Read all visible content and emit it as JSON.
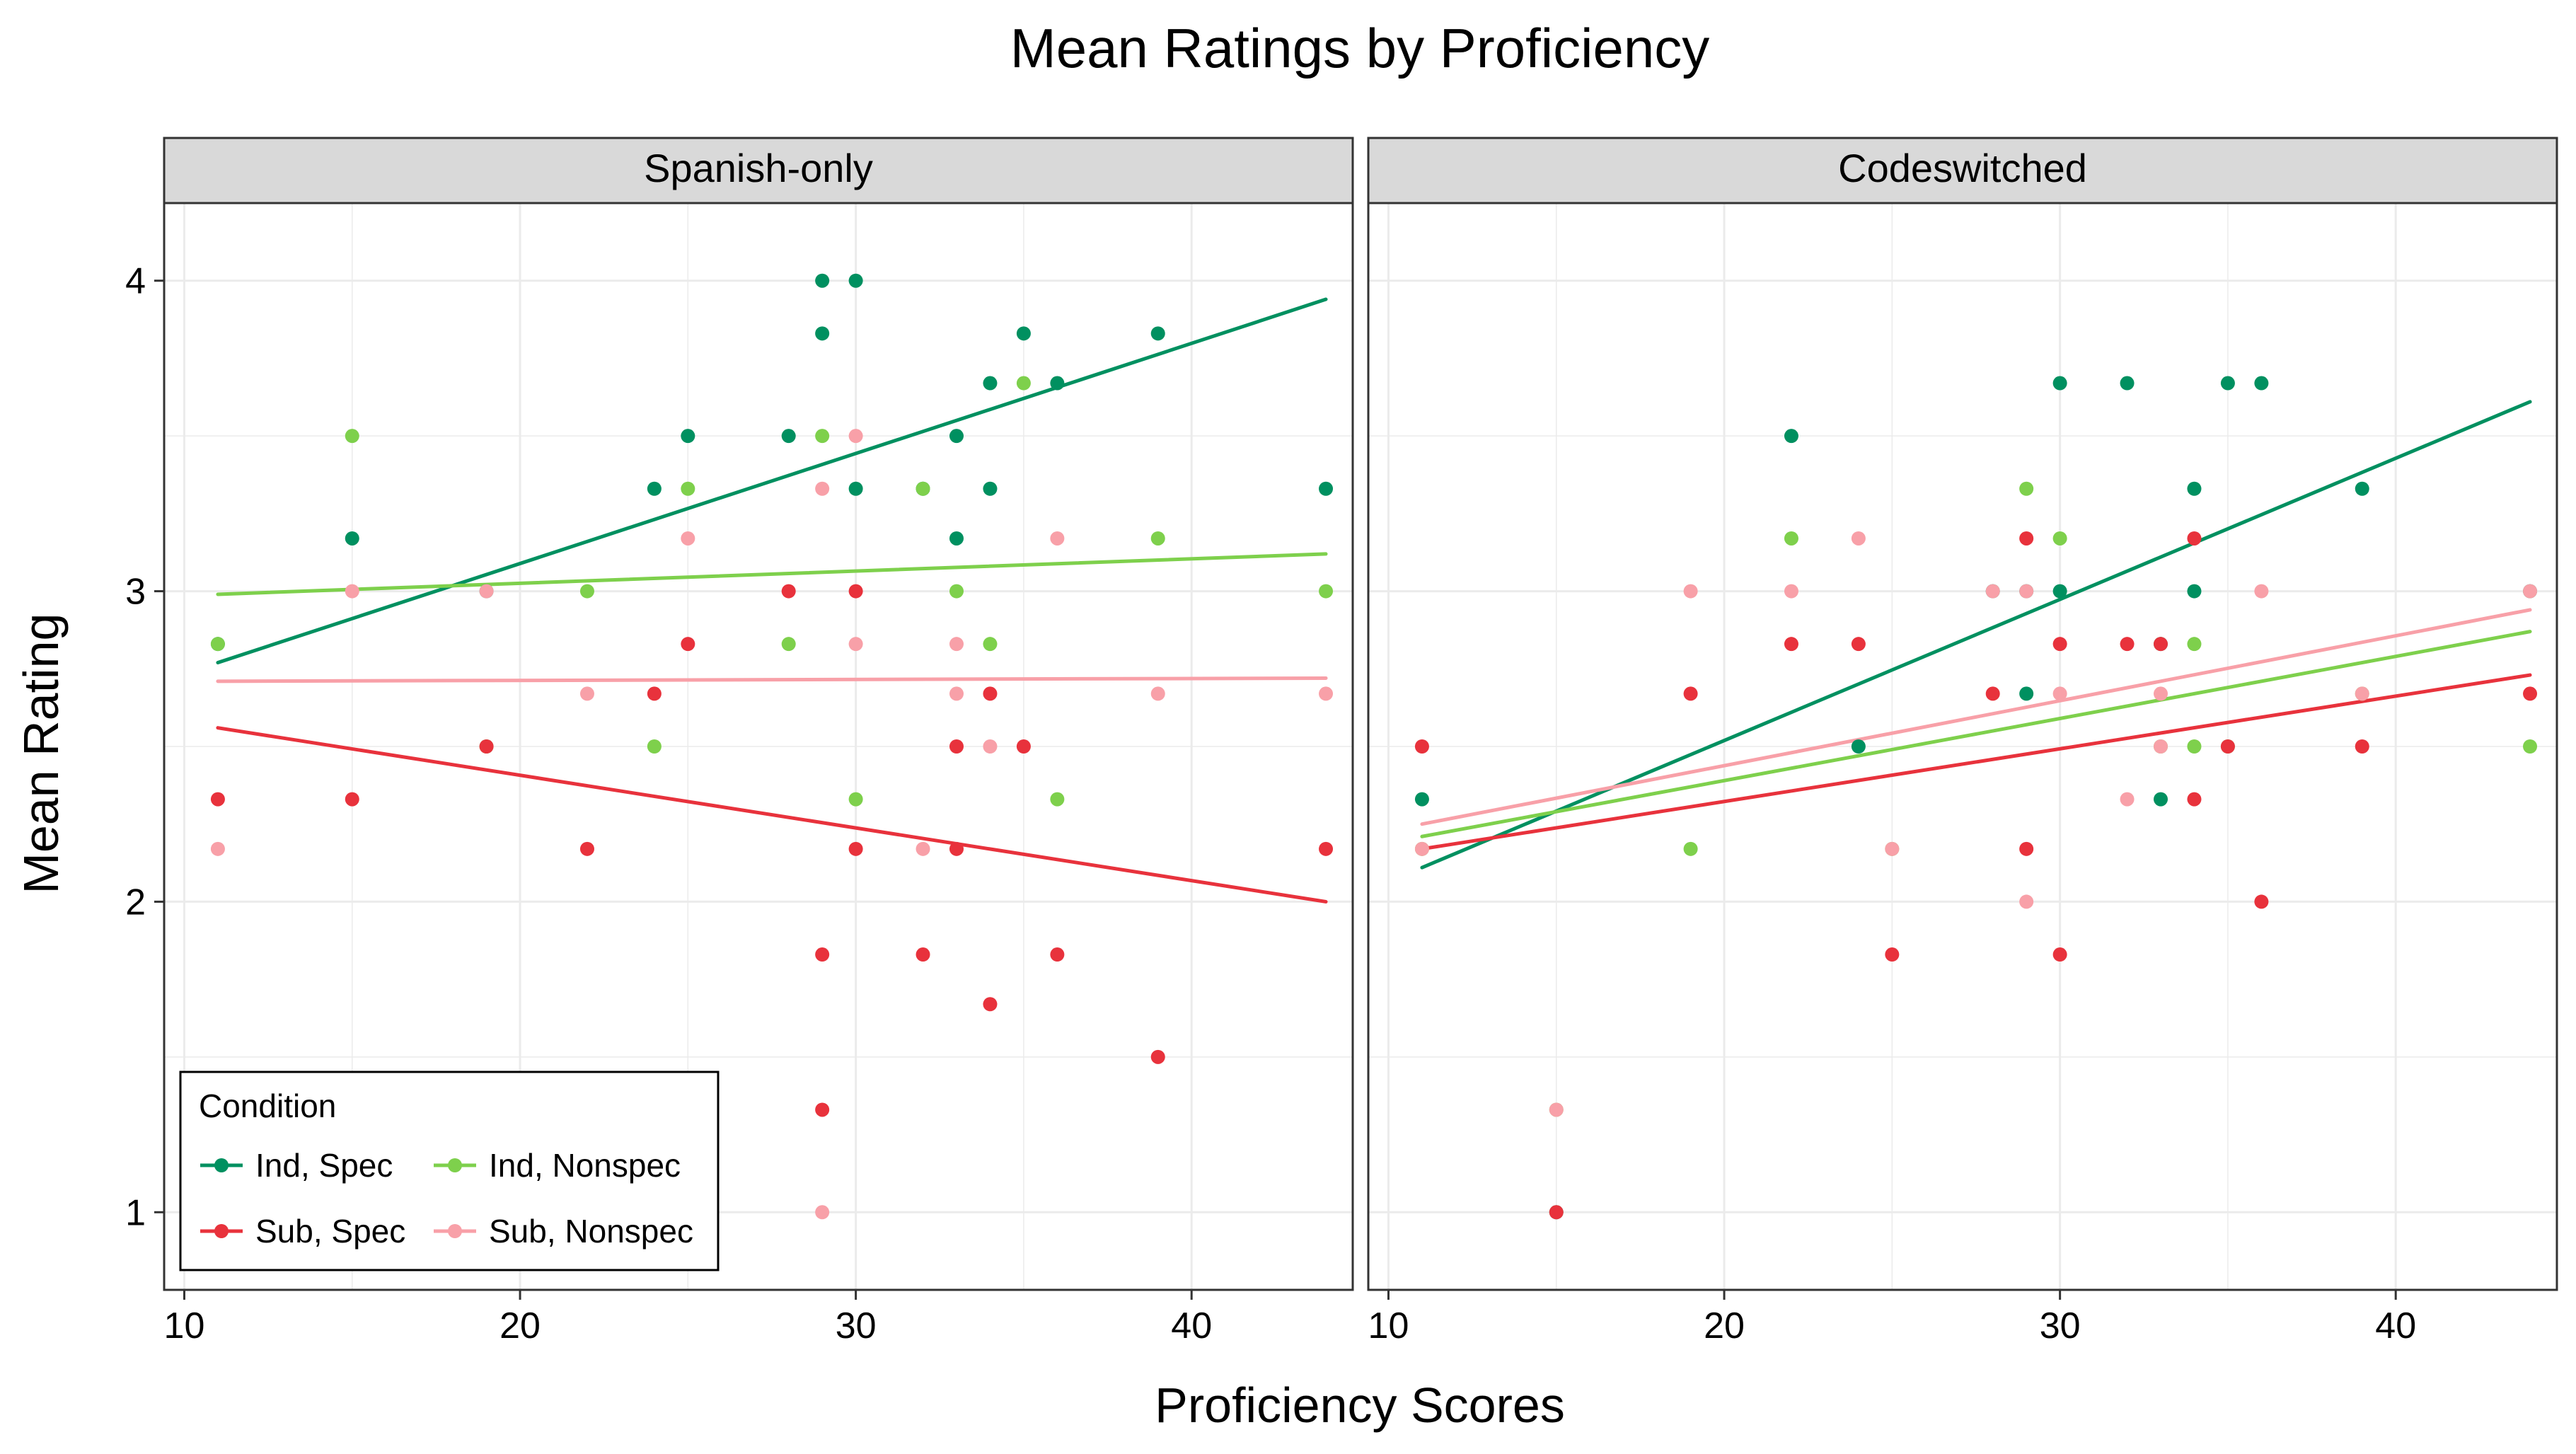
{
  "colors": {
    "ind_spec": "#009060",
    "ind_nonspec": "#7ed04c",
    "sub_spec": "#e8323c",
    "sub_nonspec": "#f8a0a8",
    "panel_border": "#333333",
    "grid": "#ebebeb",
    "strip_fill": "#d9d9d9"
  },
  "chart_data": {
    "type": "scatter",
    "title": "Mean Ratings by Proficiency",
    "xlabel": "Proficiency Scores",
    "ylabel": "Mean Rating",
    "xlim": [
      9.4,
      44.8
    ],
    "ylim": [
      0.75,
      4.25
    ],
    "xticks": [
      10,
      20,
      30,
      40
    ],
    "yticks": [
      1,
      2,
      3,
      4
    ],
    "grid": true,
    "legend": {
      "title": "Condition",
      "placement": "bottom-left",
      "entries": [
        {
          "key": "ind_spec",
          "label": "Ind, Spec"
        },
        {
          "key": "ind_nonspec",
          "label": "Ind, Nonspec"
        },
        {
          "key": "sub_spec",
          "label": "Sub, Spec"
        },
        {
          "key": "sub_nonspec",
          "label": "Sub, Nonspec"
        }
      ]
    },
    "panels": [
      {
        "name": "Spanish-only",
        "series": [
          {
            "key": "ind_spec",
            "points": [
              [
                11,
                2.83
              ],
              [
                15,
                3.17
              ],
              [
                19,
                3.0
              ],
              [
                24,
                3.33
              ],
              [
                25,
                3.5
              ],
              [
                28,
                3.5
              ],
              [
                29,
                4.0
              ],
              [
                29,
                3.83
              ],
              [
                30,
                4.0
              ],
              [
                30,
                3.33
              ],
              [
                32,
                3.33
              ],
              [
                33,
                3.5
              ],
              [
                33,
                3.17
              ],
              [
                34,
                3.67
              ],
              [
                34,
                3.33
              ],
              [
                35,
                3.83
              ],
              [
                36,
                3.67
              ],
              [
                39,
                3.83
              ],
              [
                44,
                3.33
              ]
            ],
            "trend": [
              [
                11,
                2.77
              ],
              [
                44,
                3.94
              ]
            ]
          },
          {
            "key": "ind_nonspec",
            "points": [
              [
                11,
                2.83
              ],
              [
                15,
                3.5
              ],
              [
                19,
                2.5
              ],
              [
                22,
                3.0
              ],
              [
                24,
                2.5
              ],
              [
                25,
                3.33
              ],
              [
                28,
                2.83
              ],
              [
                29,
                3.5
              ],
              [
                30,
                2.33
              ],
              [
                32,
                3.33
              ],
              [
                33,
                3.0
              ],
              [
                34,
                2.83
              ],
              [
                35,
                3.67
              ],
              [
                36,
                2.33
              ],
              [
                39,
                3.17
              ],
              [
                44,
                3.0
              ]
            ],
            "trend": [
              [
                11,
                2.99
              ],
              [
                44,
                3.12
              ]
            ]
          },
          {
            "key": "sub_spec",
            "points": [
              [
                11,
                2.33
              ],
              [
                15,
                2.33
              ],
              [
                19,
                2.5
              ],
              [
                22,
                2.17
              ],
              [
                24,
                2.67
              ],
              [
                25,
                2.83
              ],
              [
                28,
                3.0
              ],
              [
                29,
                1.83
              ],
              [
                29,
                1.33
              ],
              [
                30,
                3.0
              ],
              [
                30,
                2.17
              ],
              [
                32,
                1.83
              ],
              [
                33,
                2.5
              ],
              [
                33,
                2.17
              ],
              [
                34,
                2.67
              ],
              [
                34,
                1.67
              ],
              [
                35,
                2.5
              ],
              [
                36,
                1.83
              ],
              [
                39,
                1.5
              ],
              [
                44,
                2.17
              ]
            ],
            "trend": [
              [
                11,
                2.56
              ],
              [
                44,
                2.0
              ]
            ]
          },
          {
            "key": "sub_nonspec",
            "points": [
              [
                11,
                2.17
              ],
              [
                15,
                3.0
              ],
              [
                19,
                3.0
              ],
              [
                22,
                2.67
              ],
              [
                25,
                3.17
              ],
              [
                29,
                3.33
              ],
              [
                29,
                1.0
              ],
              [
                30,
                3.5
              ],
              [
                30,
                2.83
              ],
              [
                32,
                2.17
              ],
              [
                33,
                2.83
              ],
              [
                33,
                2.67
              ],
              [
                34,
                2.5
              ],
              [
                36,
                3.17
              ],
              [
                39,
                2.67
              ],
              [
                44,
                2.67
              ]
            ],
            "trend": [
              [
                11,
                2.71
              ],
              [
                44,
                2.72
              ]
            ]
          }
        ]
      },
      {
        "name": "Codeswitched",
        "series": [
          {
            "key": "ind_spec",
            "points": [
              [
                11,
                2.33
              ],
              [
                15,
                1.0
              ],
              [
                22,
                3.5
              ],
              [
                24,
                2.5
              ],
              [
                28,
                3.0
              ],
              [
                29,
                3.0
              ],
              [
                29,
                2.67
              ],
              [
                30,
                3.67
              ],
              [
                30,
                3.0
              ],
              [
                32,
                3.67
              ],
              [
                33,
                2.83
              ],
              [
                33,
                2.33
              ],
              [
                34,
                3.33
              ],
              [
                34,
                3.0
              ],
              [
                35,
                3.67
              ],
              [
                36,
                3.67
              ],
              [
                39,
                3.33
              ],
              [
                44,
                3.0
              ]
            ],
            "trend": [
              [
                11,
                2.11
              ],
              [
                44,
                3.61
              ]
            ]
          },
          {
            "key": "ind_nonspec",
            "points": [
              [
                11,
                2.17
              ],
              [
                15,
                1.33
              ],
              [
                19,
                2.17
              ],
              [
                22,
                3.17
              ],
              [
                25,
                2.17
              ],
              [
                29,
                3.33
              ],
              [
                30,
                3.17
              ],
              [
                33,
                2.5
              ],
              [
                34,
                2.83
              ],
              [
                34,
                2.5
              ],
              [
                35,
                2.5
              ],
              [
                39,
                2.67
              ],
              [
                44,
                2.5
              ]
            ],
            "trend": [
              [
                11,
                2.21
              ],
              [
                44,
                2.87
              ]
            ]
          },
          {
            "key": "sub_spec",
            "points": [
              [
                11,
                2.5
              ],
              [
                15,
                1.0
              ],
              [
                19,
                2.67
              ],
              [
                22,
                2.83
              ],
              [
                24,
                2.83
              ],
              [
                25,
                1.83
              ],
              [
                28,
                2.67
              ],
              [
                29,
                3.17
              ],
              [
                29,
                2.17
              ],
              [
                30,
                2.83
              ],
              [
                30,
                1.83
              ],
              [
                32,
                2.83
              ],
              [
                33,
                2.83
              ],
              [
                34,
                3.17
              ],
              [
                34,
                2.33
              ],
              [
                35,
                2.5
              ],
              [
                36,
                2.0
              ],
              [
                39,
                2.5
              ],
              [
                44,
                2.67
              ]
            ],
            "trend": [
              [
                11,
                2.17
              ],
              [
                44,
                2.73
              ]
            ]
          },
          {
            "key": "sub_nonspec",
            "points": [
              [
                11,
                2.17
              ],
              [
                15,
                1.33
              ],
              [
                19,
                3.0
              ],
              [
                22,
                3.0
              ],
              [
                24,
                3.17
              ],
              [
                25,
                2.17
              ],
              [
                28,
                3.0
              ],
              [
                29,
                3.0
              ],
              [
                29,
                2.0
              ],
              [
                30,
                2.67
              ],
              [
                32,
                2.33
              ],
              [
                33,
                2.67
              ],
              [
                33,
                2.5
              ],
              [
                36,
                3.0
              ],
              [
                39,
                2.67
              ],
              [
                44,
                3.0
              ]
            ],
            "trend": [
              [
                11,
                2.25
              ],
              [
                44,
                2.94
              ]
            ]
          }
        ]
      }
    ]
  }
}
